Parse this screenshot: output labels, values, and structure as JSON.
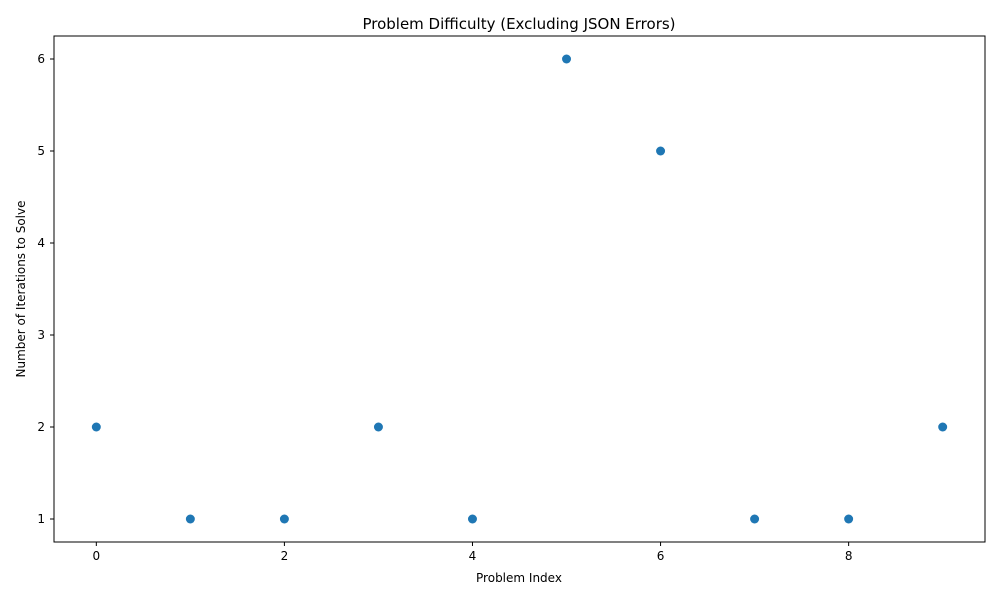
{
  "chart_data": {
    "type": "scatter",
    "title": "Problem Difficulty (Excluding JSON Errors)",
    "xlabel": "Problem Index",
    "ylabel": "Number of Iterations to Solve",
    "x": [
      0,
      1,
      2,
      3,
      4,
      5,
      6,
      7,
      8,
      9
    ],
    "y": [
      2,
      1,
      1,
      2,
      1,
      6,
      5,
      1,
      1,
      2
    ],
    "xlim": [
      -0.45,
      9.45
    ],
    "ylim": [
      0.75,
      6.25
    ],
    "xticks": [
      0,
      2,
      4,
      6,
      8
    ],
    "yticks": [
      1,
      2,
      3,
      4,
      5,
      6
    ],
    "marker_color": "#1f77b4",
    "grid": false,
    "legend": "none"
  }
}
